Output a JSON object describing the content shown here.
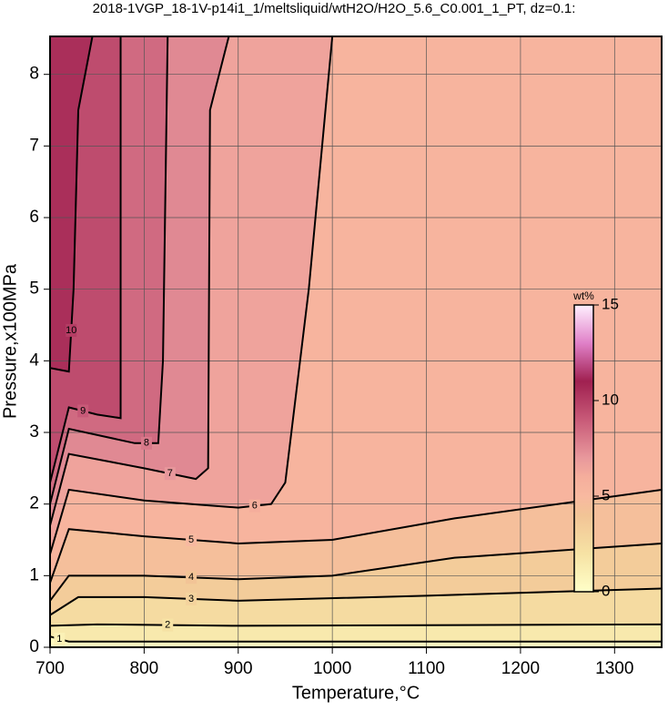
{
  "chart_data": {
    "type": "contour",
    "title": "2018-1VGP_18-1V-p14i1_1/meltsliquid/wtH2O/H2O_5.6_C0.001_1_PT, dz=0.1:",
    "xlabel": "Temperature,°C",
    "ylabel": "Pressure,x100MPa",
    "xlim": [
      700,
      1350
    ],
    "ylim": [
      0,
      8.53
    ],
    "xticks": [
      700,
      800,
      900,
      1000,
      1100,
      1200,
      1300
    ],
    "yticks": [
      0,
      1,
      2,
      3,
      4,
      5,
      6,
      7,
      8
    ],
    "grid": true,
    "colormap": [
      [
        0,
        "#ffffc8"
      ],
      [
        2,
        "#f6e2a4"
      ],
      [
        4,
        "#f2c496"
      ],
      [
        5,
        "#f8b9a0"
      ],
      [
        6,
        "#f5ae9c"
      ],
      [
        7,
        "#e8989c"
      ],
      [
        9,
        "#c85a78"
      ],
      [
        11,
        "#a02050"
      ],
      [
        13,
        "#e080c8"
      ],
      [
        15,
        "#fff0ff"
      ]
    ],
    "colorbar": {
      "label": "wt%",
      "lim": [
        0,
        15
      ],
      "ticks": [
        0,
        5,
        10,
        15
      ]
    },
    "contours": [
      {
        "level": 1,
        "x": [
          700,
          720,
          1350
        ],
        "y": [
          0.15,
          0.08,
          0.08
        ]
      },
      {
        "level": 2,
        "x": [
          700,
          750,
          900,
          1350
        ],
        "y": [
          0.3,
          0.32,
          0.3,
          0.32
        ]
      },
      {
        "level": 3,
        "x": [
          700,
          730,
          800,
          900,
          1100,
          1350
        ],
        "y": [
          0.45,
          0.7,
          0.7,
          0.65,
          0.72,
          0.82
        ]
      },
      {
        "level": 4,
        "x": [
          700,
          720,
          800,
          900,
          1000,
          1130,
          1350
        ],
        "y": [
          0.65,
          1.0,
          1.0,
          0.95,
          1.0,
          1.25,
          1.45
        ]
      },
      {
        "level": 5,
        "x": [
          700,
          720,
          800,
          900,
          1000,
          1130,
          1350
        ],
        "y": [
          0.9,
          1.65,
          1.55,
          1.45,
          1.5,
          1.8,
          2.2
        ]
      },
      {
        "level": 6,
        "x": [
          700,
          720,
          800,
          900,
          935,
          950,
          975,
          1000
        ],
        "y": [
          1.3,
          2.2,
          2.05,
          1.95,
          2.0,
          2.3,
          5.0,
          8.53
        ]
      },
      {
        "level": 7,
        "x": [
          700,
          720,
          800,
          855,
          868,
          870,
          890
        ],
        "y": [
          1.7,
          2.7,
          2.5,
          2.35,
          2.5,
          7.5,
          8.53
        ]
      },
      {
        "level": 8,
        "x": [
          700,
          720,
          790,
          815,
          820,
          825
        ],
        "y": [
          2.0,
          3.05,
          2.85,
          2.85,
          4.0,
          8.53
        ]
      },
      {
        "level": 9,
        "x": [
          700,
          720,
          750,
          775,
          775
        ],
        "y": [
          2.3,
          3.35,
          3.25,
          3.2,
          8.53
        ]
      },
      {
        "level": 10,
        "x": [
          700,
          720,
          725,
          730,
          745
        ],
        "y": [
          3.9,
          3.85,
          5.0,
          7.5,
          8.53
        ]
      }
    ]
  }
}
